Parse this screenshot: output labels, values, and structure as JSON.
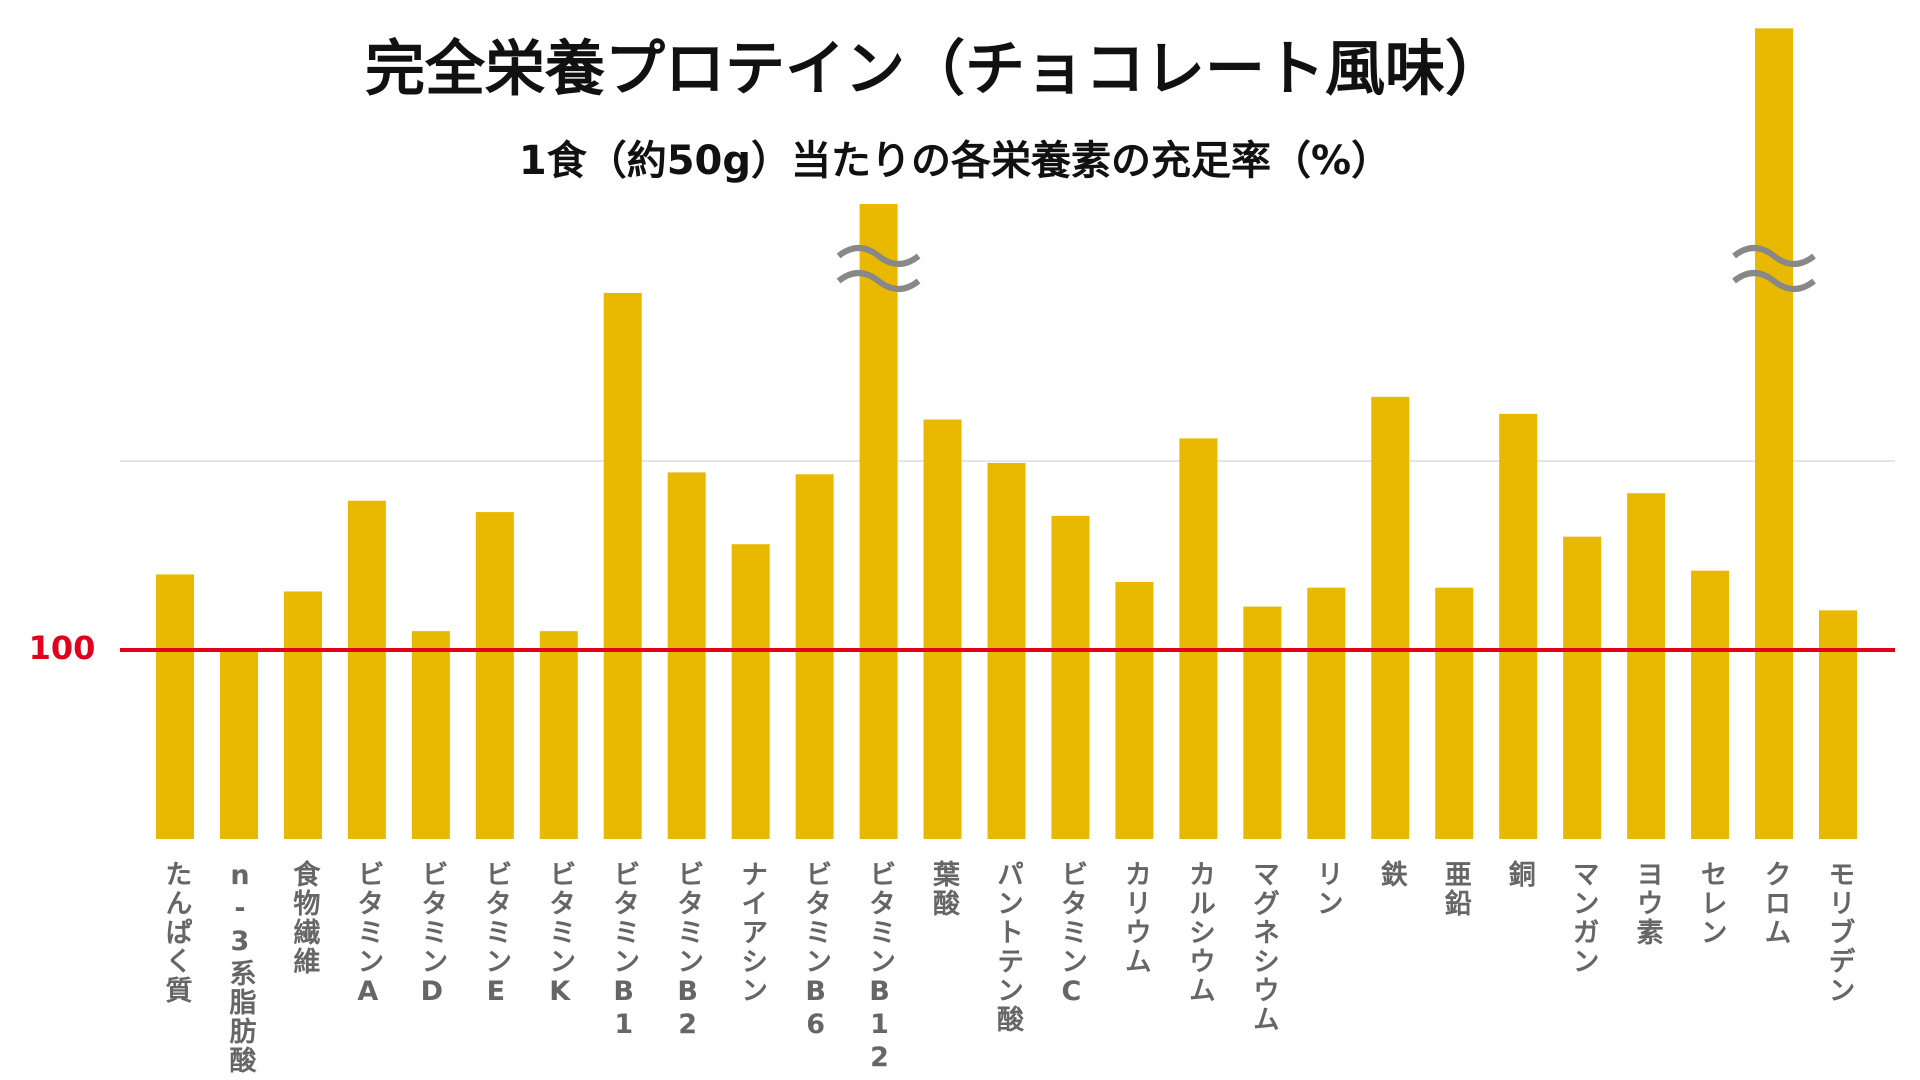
{
  "chart_data": {
    "type": "bar",
    "title": "完全栄養プロテイン（チョコレート風味）",
    "subtitle": "1食（約50g）当たりの各栄養素の充足率（%）",
    "categories": [
      "たんぱく質",
      "n-3系脂肪酸",
      "食物繊維",
      "ビタミンA",
      "ビタミンD",
      "ビタミンE",
      "ビタミンK",
      "ビタミンB1",
      "ビタミンB2",
      "ナイアシン",
      "ビタミンB6",
      "ビタミンB12",
      "葉酸",
      "パントテン酸",
      "ビタミンC",
      "カリウム",
      "カルシウム",
      "マグネシウム",
      "リン",
      "鉄",
      "亜鉛",
      "銅",
      "マンガン",
      "ヨウ素",
      "セレン",
      "クロム",
      "モリブデン"
    ],
    "values": [
      140,
      100,
      131,
      179,
      110,
      173,
      110,
      289,
      194,
      156,
      193,
      336,
      222,
      199,
      171,
      136,
      212,
      123,
      133,
      234,
      133,
      225,
      160,
      183,
      142,
      429,
      121
    ],
    "broken_bars": [
      11,
      25
    ],
    "color": "#e9b800",
    "ylim": [
      0,
      444
    ],
    "yticks": [
      100
    ],
    "tick_color": "#e0001b",
    "grid_values": [
      200
    ]
  }
}
